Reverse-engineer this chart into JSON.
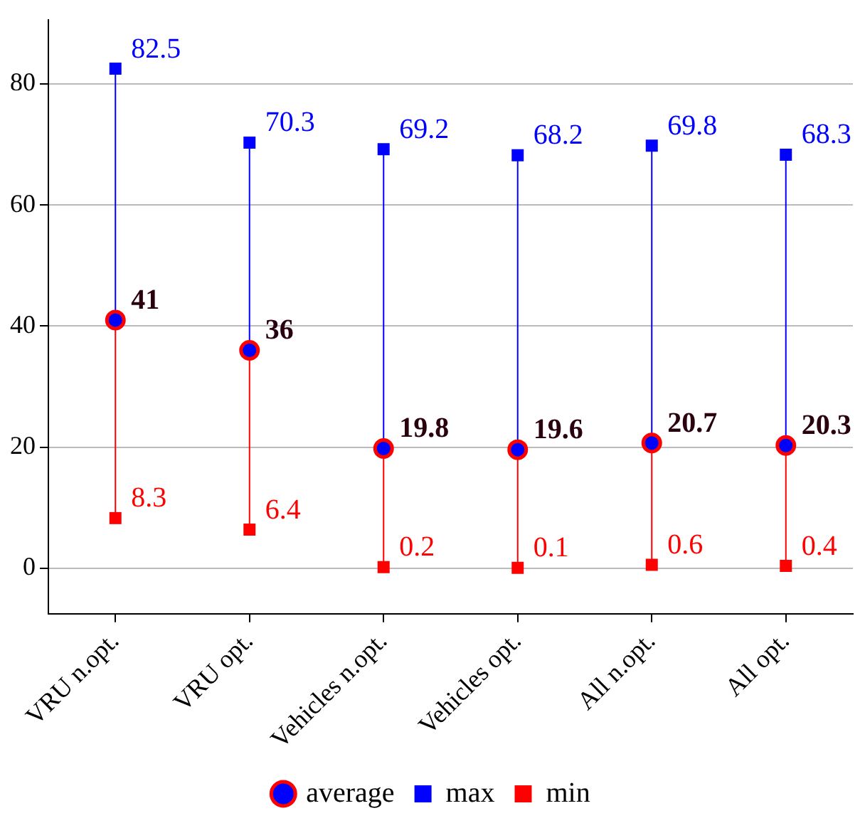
{
  "chart_data": {
    "type": "scatter",
    "categories": [
      "VRU n.opt.",
      "VRU opt.",
      "Vehicles n.opt.",
      "Vehicles opt.",
      "All n.opt.",
      "All opt."
    ],
    "ylim": [
      -7.5,
      90.6
    ],
    "yticks": [
      0,
      20,
      40,
      60,
      80
    ],
    "series": [
      {
        "name": "average",
        "color": "#ff0000",
        "marker": "circle",
        "values": [
          41,
          36,
          19.8,
          19.6,
          20.7,
          20.3
        ]
      },
      {
        "name": "max",
        "color": "#0000ff",
        "marker": "square",
        "values": [
          82.5,
          70.3,
          69.2,
          68.2,
          69.8,
          68.3
        ]
      },
      {
        "name": "min",
        "color": "#ff0000",
        "marker": "square",
        "values": [
          8.3,
          6.4,
          0.2,
          0.1,
          0.6,
          0.4
        ]
      }
    ],
    "data_labels": true,
    "grid": "y",
    "legend": "bottom"
  }
}
